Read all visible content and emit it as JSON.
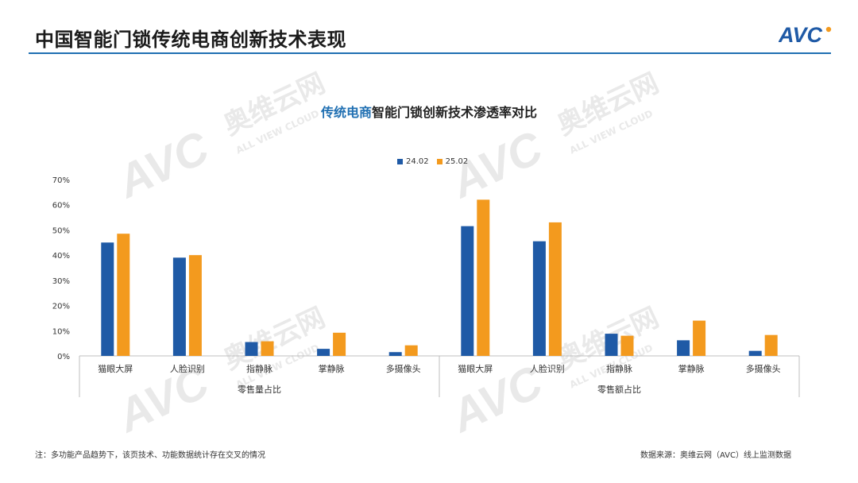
{
  "header": {
    "title": "中国智能门锁传统电商创新技术表现",
    "logo_text": "AVC"
  },
  "chart": {
    "title_accent": "传统电商",
    "title_rest": "智能门锁创新技术渗透率对比"
  },
  "legend": {
    "items": [
      {
        "label": "24.02",
        "color": "#1f5aa6"
      },
      {
        "label": "25.02",
        "color": "#f39a1e"
      }
    ]
  },
  "watermark": {
    "brand": "奥维云网",
    "sub": "ALL VIEW CLOUD",
    "logo": "AVC"
  },
  "footer": {
    "note": "注：多功能产品趋势下，该页技术、功能数据统计存在交叉的情况",
    "source": "数据来源：奥维云网（AVC）线上监测数据"
  },
  "chart_data": {
    "type": "bar",
    "title": "传统电商智能门锁创新技术渗透率对比",
    "ylim": [
      0,
      70
    ],
    "yticks": [
      "0%",
      "10%",
      "20%",
      "30%",
      "40%",
      "50%",
      "60%",
      "70%"
    ],
    "grid": false,
    "legend_position": "top-center",
    "groups": [
      {
        "label": "零售量占比",
        "categories": [
          "猫眼大屏",
          "人脸识别",
          "指静脉",
          "掌静脉",
          "多摄像头"
        ],
        "series": [
          {
            "name": "24.02",
            "values": [
              45,
              39,
              5.5,
              2.8,
              1.5
            ]
          },
          {
            "name": "25.02",
            "values": [
              48.5,
              40,
              5.8,
              9.2,
              4.2
            ]
          }
        ]
      },
      {
        "label": "零售额占比",
        "categories": [
          "猫眼大屏",
          "人脸识别",
          "指静脉",
          "掌静脉",
          "多摄像头"
        ],
        "series": [
          {
            "name": "24.02",
            "values": [
              51.5,
              45.5,
              8.8,
              6.2,
              2.0
            ]
          },
          {
            "name": "25.02",
            "values": [
              62,
              53,
              8.0,
              14.0,
              8.3
            ]
          }
        ]
      }
    ]
  }
}
